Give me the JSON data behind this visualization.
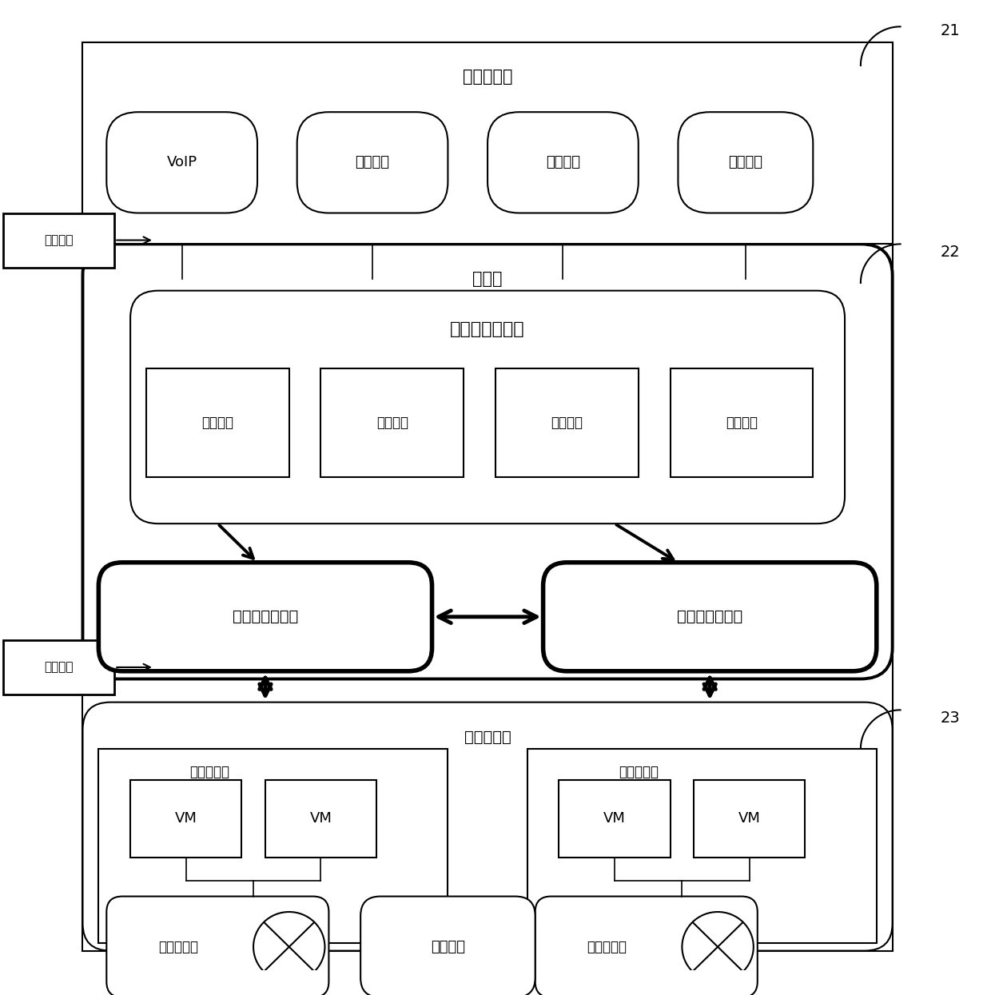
{
  "bg_color": "#ffffff",
  "fig_width": 12.4,
  "fig_height": 12.45,
  "labels": {
    "upper_app_layer": "上层应用层",
    "control_layer": "控制层",
    "infra_layer": "基础设施层",
    "central_controller": "集中管理控制器",
    "north_interface": "北向接口",
    "south_interface": "南向接口",
    "voip": "VoIP",
    "email": "电子邮件",
    "web_search": "网络搜索",
    "new_service": "新型业务",
    "global_view": "全局视图",
    "vnet_mapping": "虚网映射",
    "domain_ctrl": "分域管控",
    "inter_domain_routing": "域间路由",
    "sub_ctrl": "分域局部控制器",
    "virt_server": "虚拟服务器",
    "vm": "VM",
    "virt_router": "虚拟路由器",
    "virt_link": "虚拟链路",
    "label_21": "21",
    "label_22": "22",
    "label_23": "23"
  }
}
